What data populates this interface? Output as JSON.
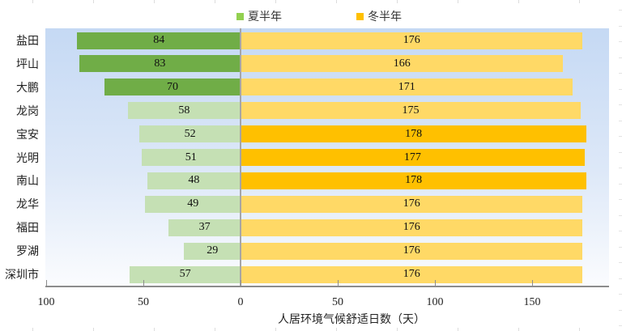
{
  "chart_data": {
    "type": "bar",
    "orientation": "horizontal",
    "layout": "diverging",
    "title": "",
    "xlabel": "人居环境气候舒适日数（天）",
    "ylabel": "",
    "categories": [
      "盐田",
      "坪山",
      "大鹏",
      "龙岗",
      "宝安",
      "光明",
      "南山",
      "龙华",
      "福田",
      "罗湖",
      "深圳市"
    ],
    "series": [
      {
        "name": "夏半年",
        "direction": "left",
        "values": [
          84,
          83,
          70,
          58,
          52,
          51,
          48,
          49,
          37,
          29,
          57
        ]
      },
      {
        "name": "冬半年",
        "direction": "right",
        "values": [
          176,
          166,
          171,
          175,
          178,
          177,
          178,
          176,
          176,
          176,
          176
        ]
      }
    ],
    "x_ticks": [
      "100",
      "50",
      "0",
      "50",
      "100",
      "150"
    ],
    "xlim": [
      -100,
      190
    ],
    "legend_position": "top",
    "grid": false,
    "data_labels": true,
    "colors": {
      "summer_highlight": "#70ad47",
      "summer_normal": "#c5e0b4",
      "winter_highlight": "#ffc000",
      "winter_normal": "#ffd966",
      "legend_summer": "#92d050",
      "legend_winter": "#ffc000"
    },
    "highlighted_summer_top3": [
      "盐田",
      "坪山",
      "大鹏"
    ],
    "highlighted_winter_top3": [
      "宝安",
      "光明",
      "南山"
    ]
  },
  "legend": [
    {
      "label": "夏半年",
      "color": "#92d050"
    },
    {
      "label": "冬半年",
      "color": "#ffc000"
    }
  ]
}
